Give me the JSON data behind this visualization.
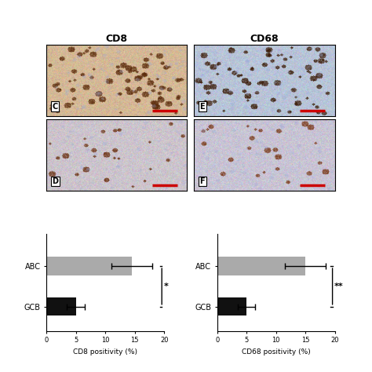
{
  "cd8_title": "CD8",
  "cd68_title": "CD68",
  "left_chart": {
    "xlabel": "CD8 positivity (%)",
    "categories": [
      "ABC",
      "GCB"
    ],
    "values": [
      14.5,
      5.0
    ],
    "errors": [
      3.5,
      1.5
    ],
    "colors": [
      "#aaaaaa",
      "#111111"
    ],
    "xlim": [
      0,
      20
    ],
    "xticks": [
      0,
      5,
      10,
      15,
      20
    ],
    "significance": "*"
  },
  "right_chart": {
    "xlabel": "CD68 positivity (%)",
    "categories": [
      "ABC",
      "GCB"
    ],
    "values": [
      15.0,
      5.0
    ],
    "errors": [
      3.5,
      1.5
    ],
    "colors": [
      "#aaaaaa",
      "#111111"
    ],
    "xlim": [
      0,
      20
    ],
    "xticks": [
      0,
      5,
      10,
      15,
      20
    ],
    "significance": "**"
  },
  "image_labels": [
    "C",
    "E",
    "D",
    "F"
  ],
  "panel_colors": {
    "C_bg": "#e8c9a8",
    "E_bg": "#c8cfe0",
    "D_bg": "#d4cdd6",
    "F_bg": "#d0cde0"
  },
  "scale_bar_color": "#cc0000",
  "background_color": "#ffffff"
}
